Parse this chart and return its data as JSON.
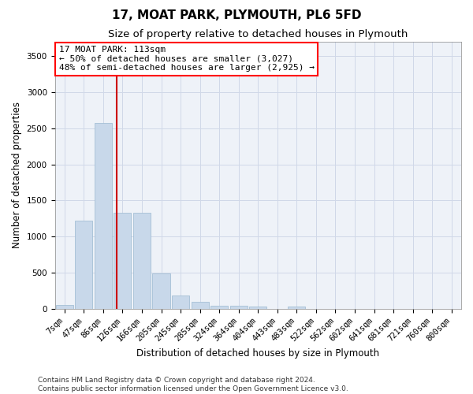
{
  "title": "17, MOAT PARK, PLYMOUTH, PL6 5FD",
  "subtitle": "Size of property relative to detached houses in Plymouth",
  "xlabel": "Distribution of detached houses by size in Plymouth",
  "ylabel": "Number of detached properties",
  "bar_labels": [
    "7sqm",
    "47sqm",
    "86sqm",
    "126sqm",
    "166sqm",
    "205sqm",
    "245sqm",
    "285sqm",
    "324sqm",
    "364sqm",
    "404sqm",
    "443sqm",
    "483sqm",
    "522sqm",
    "562sqm",
    "602sqm",
    "641sqm",
    "681sqm",
    "721sqm",
    "760sqm",
    "800sqm"
  ],
  "bar_values": [
    50,
    1220,
    2580,
    1330,
    1330,
    490,
    185,
    100,
    45,
    45,
    30,
    0,
    30,
    0,
    0,
    0,
    0,
    0,
    0,
    0,
    0
  ],
  "bar_color": "#c8d8ea",
  "bar_edgecolor": "#9ab8d0",
  "grid_color": "#d0d8e8",
  "background_color": "#eef2f8",
  "ylim_max": 3700,
  "yticks": [
    0,
    500,
    1000,
    1500,
    2000,
    2500,
    3000,
    3500
  ],
  "vline_x_index": 2.68,
  "vline_color": "#cc0000",
  "annotation_text": "17 MOAT PARK: 113sqm\n← 50% of detached houses are smaller (3,027)\n48% of semi-detached houses are larger (2,925) →",
  "footer_line1": "Contains HM Land Registry data © Crown copyright and database right 2024.",
  "footer_line2": "Contains public sector information licensed under the Open Government Licence v3.0.",
  "title_fontsize": 11,
  "subtitle_fontsize": 9.5,
  "axis_label_fontsize": 8.5,
  "tick_fontsize": 7.5,
  "annotation_fontsize": 8,
  "footer_fontsize": 6.5
}
